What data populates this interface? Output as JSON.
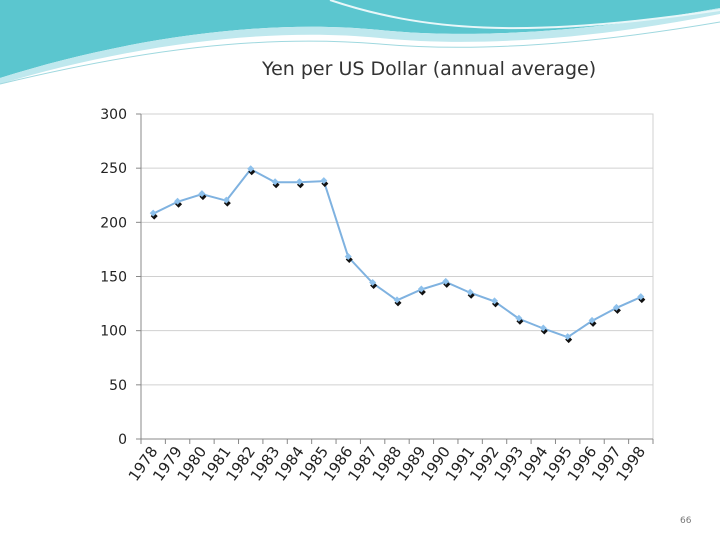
{
  "slide": {
    "page_number": "66",
    "colors": {
      "header_teal": "#5bc6cf",
      "header_light": "#bfe8ee",
      "line": "#7fb2e0",
      "marker_dark": "#111111",
      "marker_light": "#8ec1ec",
      "grid": "#d0d0d0",
      "axis": "#888888"
    }
  },
  "chart_data": {
    "type": "line",
    "title": "Yen per US Dollar (annual average)",
    "categories": [
      "1978",
      "1979",
      "1980",
      "1981",
      "1982",
      "1983",
      "1984",
      "1985",
      "1986",
      "1987",
      "1988",
      "1989",
      "1990",
      "1991",
      "1992",
      "1993",
      "1994",
      "1995",
      "1996",
      "1997",
      "1998"
    ],
    "series": [
      {
        "values": [
          208,
          219,
          226,
          220,
          249,
          237,
          237,
          238,
          168,
          144,
          128,
          138,
          145,
          135,
          127,
          111,
          102,
          94,
          109,
          121,
          131
        ]
      }
    ],
    "ylim": [
      0,
      300
    ],
    "yticks": [
      0,
      50,
      100,
      150,
      200,
      250,
      300
    ],
    "xlabel": "",
    "ylabel": "",
    "grid": "horizontal",
    "legend": "none"
  }
}
